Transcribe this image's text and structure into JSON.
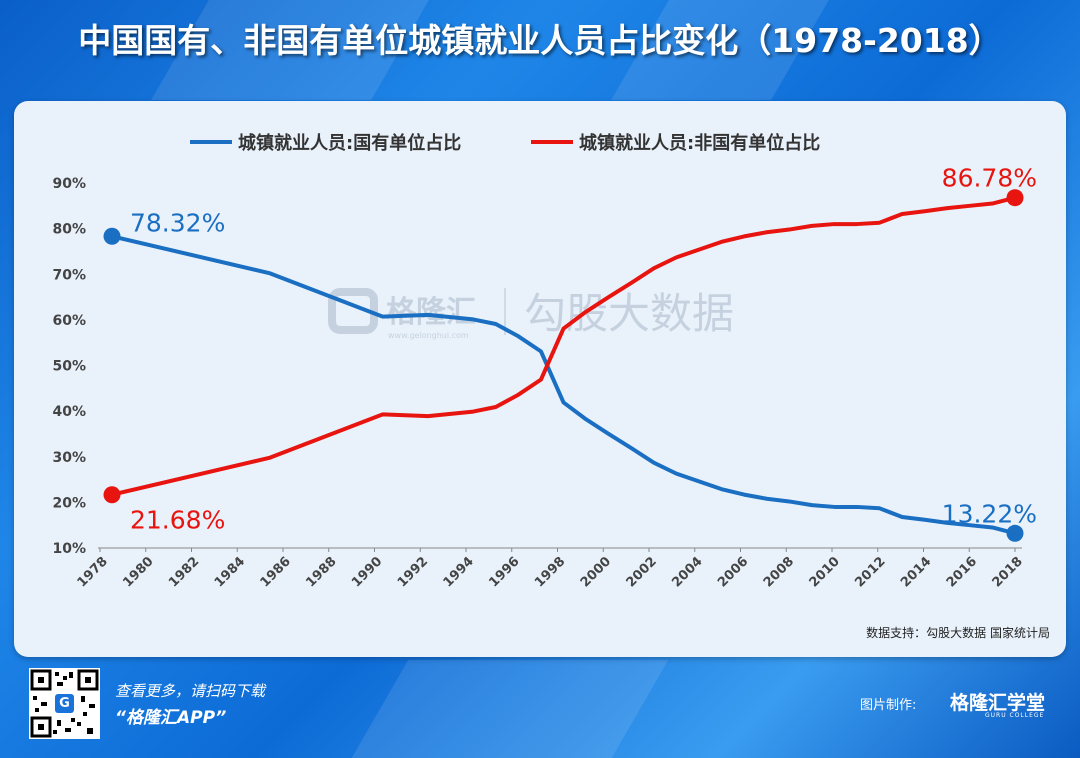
{
  "title": "中国国有、非国有单位城镇就业人员占比变化（1978-2018）",
  "source": "数据支持：勾股大数据 国家统计局",
  "watermark": {
    "brand": "格隆汇",
    "url": "www.gelonghui.com",
    "product": "勾股大数据"
  },
  "footer": {
    "promo_line1": "查看更多，请扫码下载",
    "promo_line2": "“格隆汇APP”",
    "qr_icon_letter": "G",
    "maker_label": "图片制作:",
    "brand": "格隆汇学堂",
    "brand_sub": "GURU COLLEGE"
  },
  "colors": {
    "series_state": "#1a6fc2",
    "series_nonstate": "#e8140f"
  },
  "chart_data": {
    "type": "line",
    "title": "中国国有、非国有单位城镇就业人员占比变化（1978-2018）",
    "xlabel": "",
    "ylabel": "",
    "ylim": [
      10,
      90
    ],
    "yticks": [
      "10%",
      "20%",
      "30%",
      "40%",
      "50%",
      "60%",
      "70%",
      "80%",
      "90%"
    ],
    "xticks": [
      "1978",
      "1980",
      "1982",
      "1984",
      "1986",
      "1988",
      "1990",
      "1992",
      "1994",
      "1996",
      "1998",
      "2000",
      "2002",
      "2004",
      "2006",
      "2008",
      "2010",
      "2012",
      "2014",
      "2016",
      "2018"
    ],
    "legend_position": "top",
    "grid": false,
    "x": [
      1978,
      1985,
      1990,
      1992,
      1994,
      1995,
      1996,
      1997,
      1998,
      1999,
      2000,
      2001,
      2002,
      2003,
      2004,
      2005,
      2006,
      2007,
      2008,
      2009,
      2010,
      2011,
      2012,
      2013,
      2014,
      2015,
      2016,
      2017,
      2018
    ],
    "series": [
      {
        "name": "城镇就业人员:国有单位占比",
        "values": [
          78.32,
          70.2,
          60.7,
          61.1,
          60.1,
          59.1,
          56.4,
          53.1,
          41.9,
          38.2,
          35.0,
          31.9,
          28.7,
          26.3,
          24.6,
          22.9,
          21.7,
          20.8,
          20.2,
          19.4,
          19.0,
          19.0,
          18.7,
          16.8,
          16.2,
          15.5,
          15.0,
          14.5,
          13.22
        ]
      },
      {
        "name": "城镇就业人员:非国有单位占比",
        "values": [
          21.68,
          29.8,
          39.3,
          38.9,
          39.9,
          40.9,
          43.6,
          46.9,
          58.1,
          61.8,
          65.0,
          68.1,
          71.3,
          73.7,
          75.4,
          77.1,
          78.3,
          79.2,
          79.8,
          80.6,
          81.0,
          81.0,
          81.3,
          83.2,
          83.8,
          84.5,
          85.0,
          85.5,
          86.78
        ]
      }
    ],
    "annotations": [
      {
        "text": "78.32%",
        "series": 0,
        "point": "start"
      },
      {
        "text": "13.22%",
        "series": 0,
        "point": "end"
      },
      {
        "text": "21.68%",
        "series": 1,
        "point": "start"
      },
      {
        "text": "86.78%",
        "series": 1,
        "point": "end"
      }
    ]
  }
}
